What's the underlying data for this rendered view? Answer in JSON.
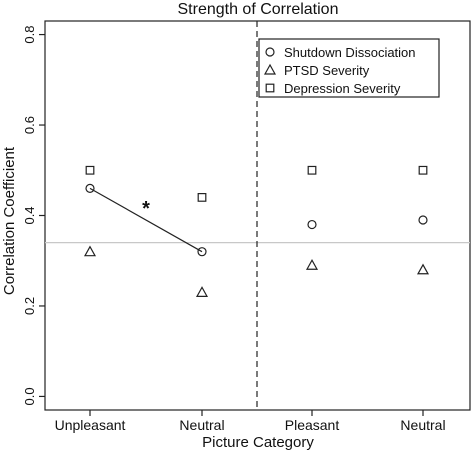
{
  "chart_data": {
    "type": "scatter",
    "title": "Strength of Correlation",
    "xlabel": "Picture Category",
    "ylabel": "Correlation Coefficient",
    "ylim": [
      -0.03,
      0.83
    ],
    "yticks": [
      "0.0",
      "0.2",
      "0.4",
      "0.6",
      "0.8"
    ],
    "ytick_values": [
      0.0,
      0.2,
      0.4,
      0.6,
      0.8
    ],
    "categories": [
      "Unpleasant",
      "Neutral",
      "Pleasant",
      "Neutral"
    ],
    "reference_line": 0.34,
    "annotation": "*",
    "legend_position": "top-right",
    "series": [
      {
        "name": "Shutdown Dissociation",
        "marker": "circle",
        "values": [
          0.46,
          0.32,
          0.38,
          0.39
        ]
      },
      {
        "name": "PTSD Severity",
        "marker": "triangle",
        "values": [
          0.32,
          0.23,
          0.29,
          0.28
        ]
      },
      {
        "name": "Depression Severity",
        "marker": "square",
        "values": [
          0.5,
          0.44,
          0.5,
          0.5
        ]
      }
    ],
    "connected_pair": {
      "series": "Shutdown Dissociation",
      "from_index": 0,
      "to_index": 1
    },
    "grid": false
  }
}
